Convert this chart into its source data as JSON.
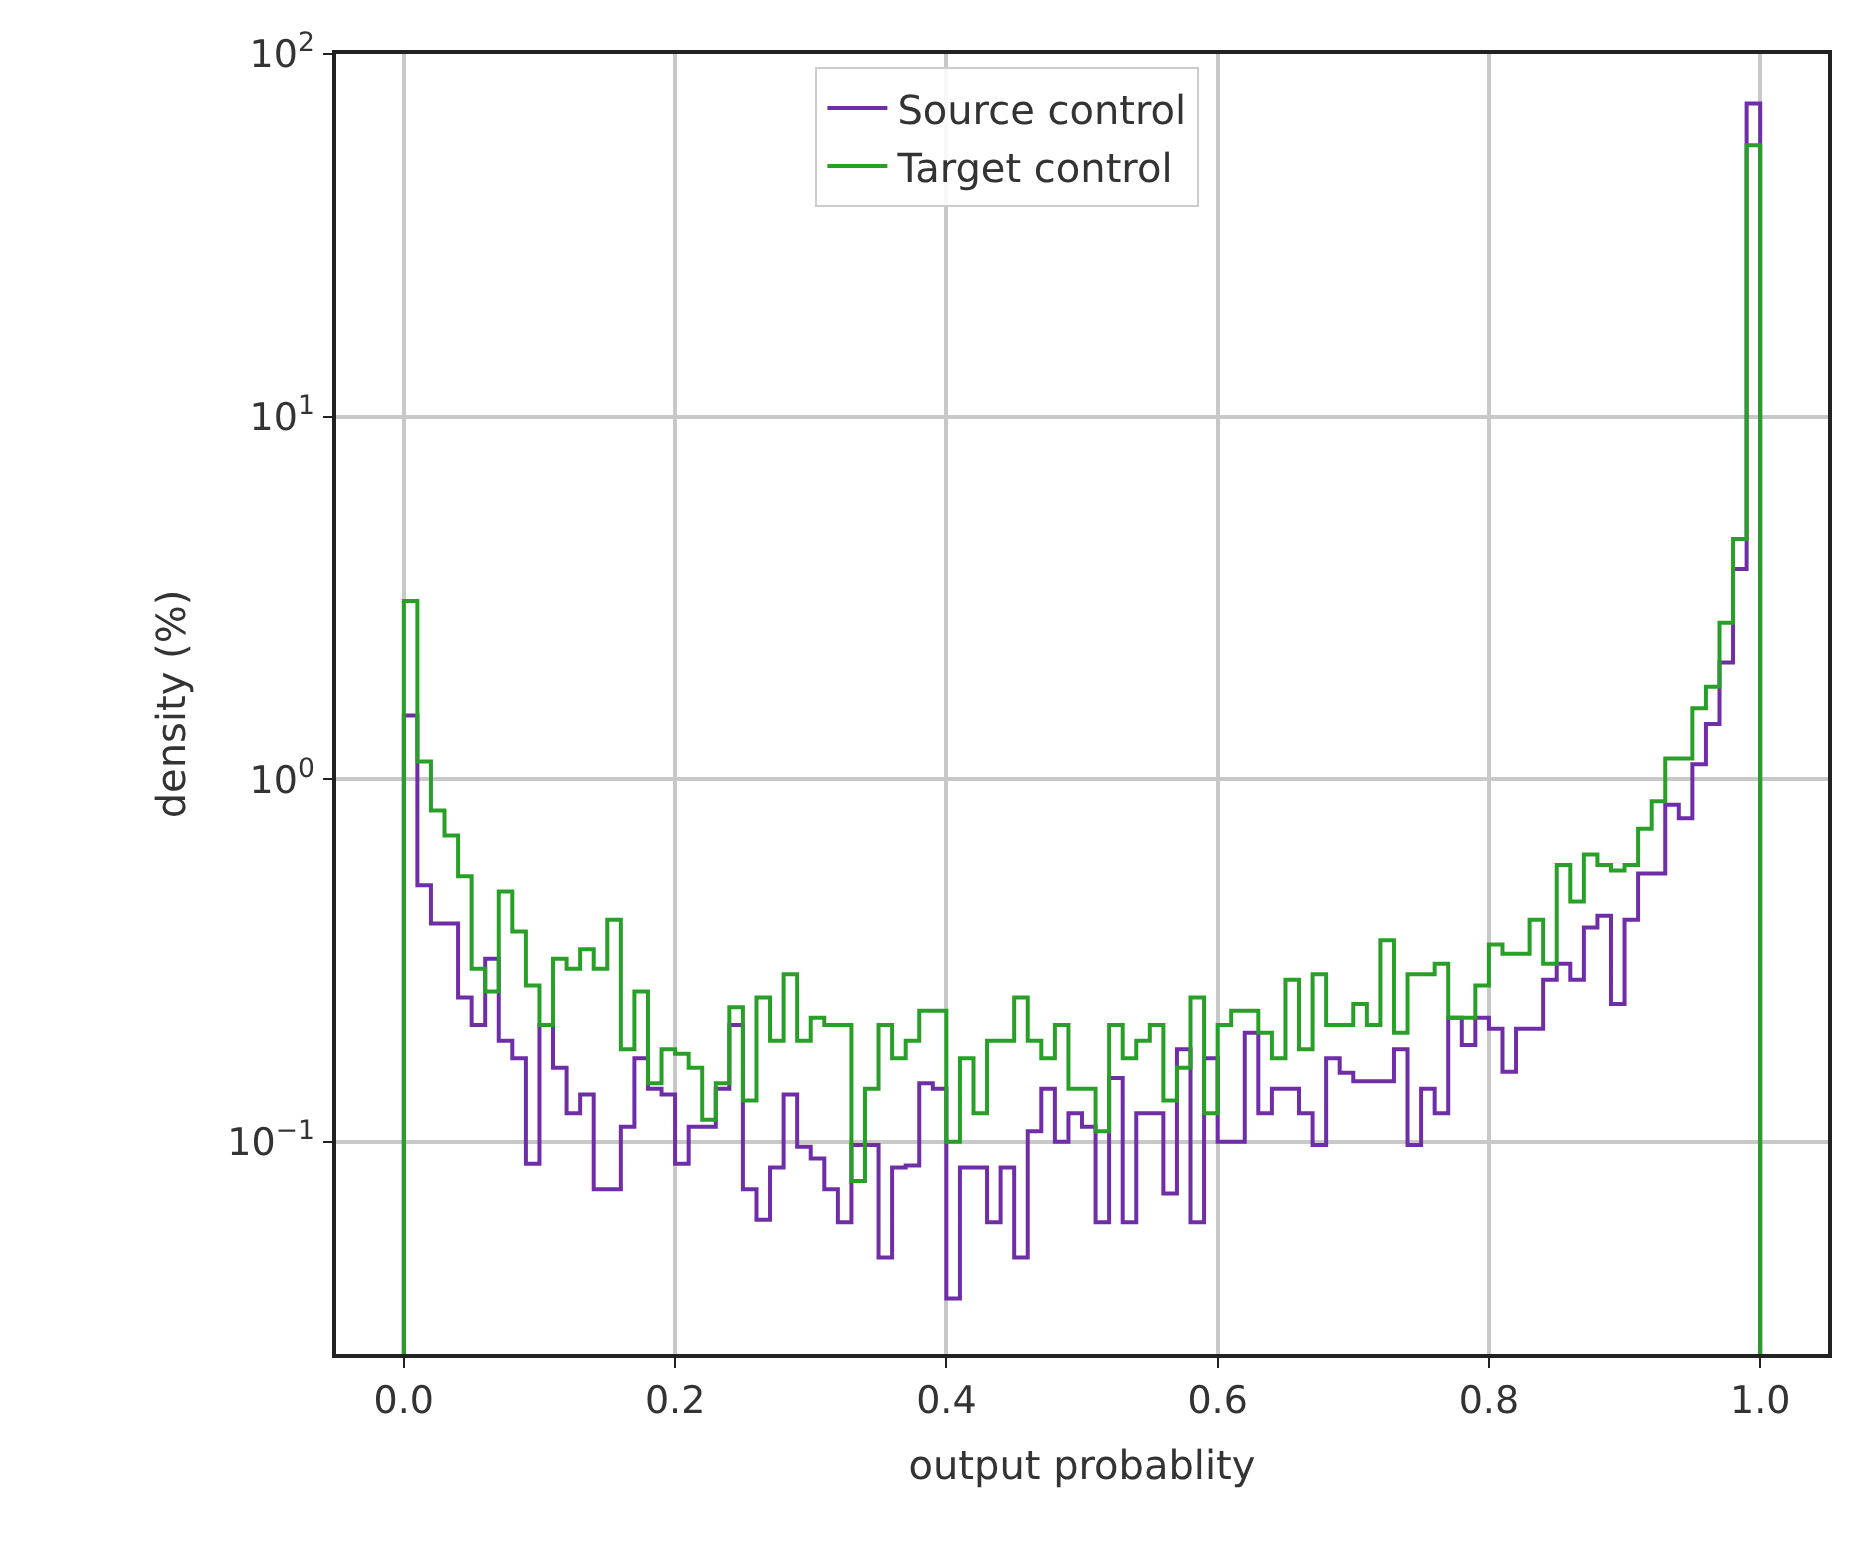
{
  "chart_data": {
    "type": "histogram",
    "xlabel": "output probablity",
    "ylabel": "density (%)",
    "bins": [
      0,
      0.01,
      0.02,
      0.03,
      0.04,
      0.05,
      0.06,
      0.07,
      0.08,
      0.09,
      0.1,
      0.11,
      0.12,
      0.13,
      0.14,
      0.15,
      0.16,
      0.17,
      0.18,
      0.19,
      0.2,
      0.21,
      0.22,
      0.23,
      0.24,
      0.25,
      0.26,
      0.27,
      0.28,
      0.29,
      0.3,
      0.31,
      0.32,
      0.33,
      0.34,
      0.35,
      0.36,
      0.37,
      0.38,
      0.39,
      0.4,
      0.41,
      0.42,
      0.43,
      0.44,
      0.45,
      0.46,
      0.47,
      0.48,
      0.49,
      0.5,
      0.51,
      0.52,
      0.53,
      0.54,
      0.55,
      0.56,
      0.57,
      0.58,
      0.59,
      0.6,
      0.61,
      0.62,
      0.63,
      0.64,
      0.65,
      0.66,
      0.67,
      0.68,
      0.69,
      0.7,
      0.71,
      0.72,
      0.73,
      0.74,
      0.75,
      0.76,
      0.77,
      0.78,
      0.79,
      0.8,
      0.81,
      0.82,
      0.83,
      0.84,
      0.85,
      0.86,
      0.87,
      0.88,
      0.89,
      0.9,
      0.91,
      0.92,
      0.93,
      0.94,
      0.95,
      0.96,
      0.97,
      0.98,
      0.99,
      1.0
    ],
    "series": [
      {
        "name": "Source control",
        "color": "#6f2da8",
        "values": [
          1.5,
          0.51,
          0.4,
          0.4,
          0.25,
          0.21,
          0.32,
          0.19,
          0.17,
          0.087,
          0.21,
          0.16,
          0.12,
          0.135,
          0.074,
          0.074,
          0.11,
          0.17,
          0.14,
          0.135,
          0.087,
          0.11,
          0.11,
          0.14,
          0.21,
          0.074,
          0.061,
          0.085,
          0.135,
          0.097,
          0.09,
          0.074,
          0.06,
          0.098,
          0.098,
          0.048,
          0.085,
          0.086,
          0.145,
          0.14,
          0.037,
          0.085,
          0.085,
          0.06,
          0.085,
          0.048,
          0.107,
          0.14,
          0.1,
          0.12,
          0.11,
          0.06,
          0.15,
          0.06,
          0.12,
          0.12,
          0.072,
          0.18,
          0.06,
          0.17,
          0.1,
          0.1,
          0.2,
          0.12,
          0.14,
          0.14,
          0.12,
          0.098,
          0.17,
          0.155,
          0.147,
          0.147,
          0.147,
          0.18,
          0.098,
          0.14,
          0.12,
          0.22,
          0.185,
          0.22,
          0.205,
          0.156,
          0.205,
          0.205,
          0.28,
          0.31,
          0.28,
          0.39,
          0.42,
          0.24,
          0.41,
          0.55,
          0.55,
          0.85,
          0.78,
          1.1,
          1.42,
          2.1,
          3.8,
          73
        ]
      },
      {
        "name": "Target control",
        "color": "#28a028",
        "values": [
          3.1,
          1.12,
          0.82,
          0.7,
          0.54,
          0.3,
          0.26,
          0.49,
          0.38,
          0.27,
          0.21,
          0.32,
          0.3,
          0.34,
          0.3,
          0.41,
          0.18,
          0.26,
          0.145,
          0.18,
          0.175,
          0.16,
          0.115,
          0.145,
          0.235,
          0.13,
          0.25,
          0.19,
          0.29,
          0.19,
          0.22,
          0.21,
          0.21,
          0.078,
          0.14,
          0.21,
          0.17,
          0.19,
          0.23,
          0.23,
          0.1,
          0.17,
          0.12,
          0.19,
          0.19,
          0.25,
          0.19,
          0.17,
          0.21,
          0.14,
          0.14,
          0.107,
          0.21,
          0.17,
          0.19,
          0.21,
          0.13,
          0.16,
          0.25,
          0.12,
          0.21,
          0.23,
          0.23,
          0.2,
          0.17,
          0.28,
          0.18,
          0.29,
          0.21,
          0.21,
          0.24,
          0.21,
          0.36,
          0.2,
          0.29,
          0.29,
          0.31,
          0.22,
          0.22,
          0.27,
          0.35,
          0.33,
          0.33,
          0.41,
          0.31,
          0.58,
          0.46,
          0.62,
          0.58,
          0.56,
          0.58,
          0.73,
          0.87,
          1.14,
          1.14,
          1.57,
          1.8,
          2.7,
          4.6,
          56
        ]
      }
    ],
    "xlim": [
      -0.05,
      1.05
    ],
    "xticks": [
      {
        "value": 0,
        "label": "0.0"
      },
      {
        "value": 0.2,
        "label": "0.2"
      },
      {
        "value": 0.4,
        "label": "0.4"
      },
      {
        "value": 0.6,
        "label": "0.6"
      },
      {
        "value": 0.8,
        "label": "0.8"
      },
      {
        "value": 1.0,
        "label": "1.0"
      }
    ],
    "log": "y",
    "ylim": [
      0.026,
      100
    ],
    "yticks": [
      {
        "value": 0.1,
        "label": "10$^{−1}$"
      },
      {
        "value": 1,
        "label": "10$^{0}$"
      },
      {
        "value": 10,
        "label": "10$^{1}$"
      },
      {
        "value": 100,
        "label": "10$^{2}$"
      }
    ],
    "grid": true,
    "legend": "top"
  }
}
